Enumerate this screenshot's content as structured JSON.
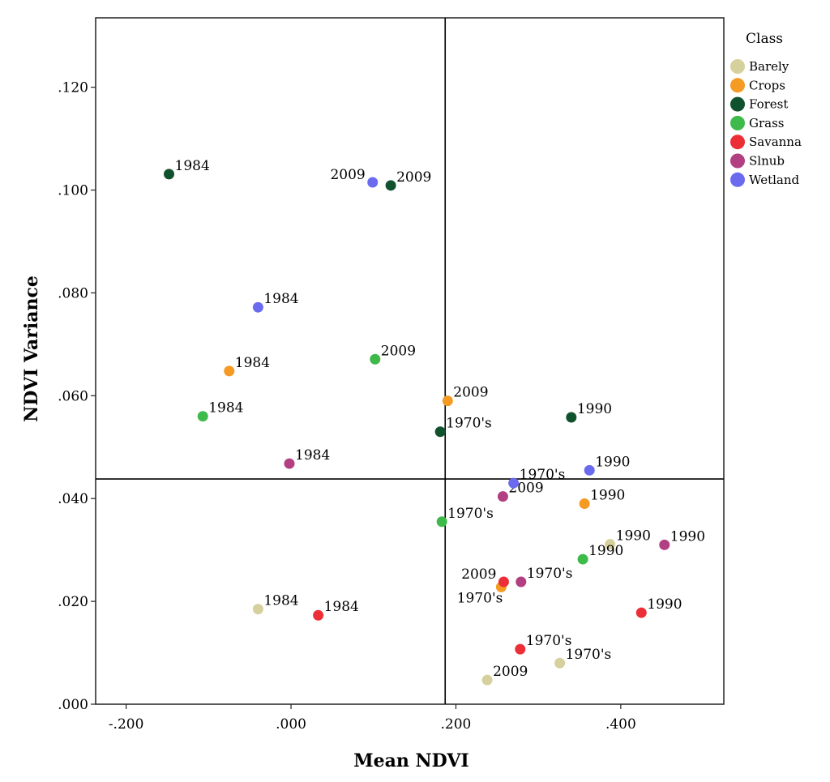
{
  "chart_data": {
    "type": "scatter",
    "title": "",
    "xlabel": "Mean NDVI",
    "ylabel": "NDVI Variance",
    "xlim": [
      -0.237,
      0.525
    ],
    "ylim": [
      0.0,
      0.1335
    ],
    "xticks": [
      -0.2,
      0.0,
      0.2,
      0.4
    ],
    "xtick_labels": [
      "-.200",
      ".000",
      ".200",
      ".400"
    ],
    "yticks": [
      0.0,
      0.02,
      0.04,
      0.06,
      0.08,
      0.1,
      0.12
    ],
    "ytick_labels": [
      ".000",
      ".020",
      ".040",
      ".060",
      ".080",
      ".100",
      ".120"
    ],
    "reference_lines": {
      "x": 0.187,
      "y": 0.0438
    },
    "grid": false,
    "legend": {
      "title": "Class",
      "position": "right",
      "entries": [
        {
          "name": "Barely",
          "color": "#d6d09c"
        },
        {
          "name": "Crops",
          "color": "#f59a22"
        },
        {
          "name": "Forest",
          "color": "#11522e"
        },
        {
          "name": "Grass",
          "color": "#3dba4a"
        },
        {
          "name": "Savanna",
          "color": "#ec2e37"
        },
        {
          "name": "Slnub",
          "color": "#b23f82"
        },
        {
          "name": "Wetland",
          "color": "#6a6aee"
        }
      ]
    },
    "series": [
      {
        "name": "Barely",
        "points": [
          {
            "x": -0.04,
            "y": 0.0185,
            "label": "1984",
            "label_pos": "right"
          },
          {
            "x": 0.238,
            "y": 0.0047,
            "label": "2009",
            "label_pos": "right"
          },
          {
            "x": 0.326,
            "y": 0.008,
            "label": "1970's",
            "label_pos": "right"
          },
          {
            "x": 0.387,
            "y": 0.0311,
            "label": "1990",
            "label_pos": "right"
          }
        ]
      },
      {
        "name": "Crops",
        "points": [
          {
            "x": -0.075,
            "y": 0.0648,
            "label": "1984",
            "label_pos": "right"
          },
          {
            "x": 0.19,
            "y": 0.059,
            "label": "2009",
            "label_pos": "right"
          },
          {
            "x": 0.255,
            "y": 0.0228,
            "label": "1970's",
            "label_pos": "below-left"
          },
          {
            "x": 0.356,
            "y": 0.039,
            "label": "1990",
            "label_pos": "right"
          }
        ]
      },
      {
        "name": "Forest",
        "points": [
          {
            "x": -0.148,
            "y": 0.1031,
            "label": "1984",
            "label_pos": "right"
          },
          {
            "x": 0.121,
            "y": 0.1009,
            "label": "2009",
            "label_pos": "right"
          },
          {
            "x": 0.181,
            "y": 0.053,
            "label": "1970's",
            "label_pos": "right"
          },
          {
            "x": 0.34,
            "y": 0.0558,
            "label": "1990",
            "label_pos": "right"
          }
        ]
      },
      {
        "name": "Grass",
        "points": [
          {
            "x": -0.107,
            "y": 0.056,
            "label": "1984",
            "label_pos": "right"
          },
          {
            "x": 0.102,
            "y": 0.0671,
            "label": "2009",
            "label_pos": "right"
          },
          {
            "x": 0.183,
            "y": 0.0355,
            "label": "1970's",
            "label_pos": "right"
          },
          {
            "x": 0.354,
            "y": 0.0282,
            "label": "1990",
            "label_pos": "right"
          }
        ]
      },
      {
        "name": "Savanna",
        "points": [
          {
            "x": 0.033,
            "y": 0.0173,
            "label": "1984",
            "label_pos": "right"
          },
          {
            "x": 0.258,
            "y": 0.0238,
            "label": "2009",
            "label_pos": "left"
          },
          {
            "x": 0.278,
            "y": 0.0107,
            "label": "1970's",
            "label_pos": "right"
          },
          {
            "x": 0.425,
            "y": 0.0178,
            "label": "1990",
            "label_pos": "right"
          }
        ]
      },
      {
        "name": "Slnub",
        "points": [
          {
            "x": -0.002,
            "y": 0.0468,
            "label": "1984",
            "label_pos": "right"
          },
          {
            "x": 0.257,
            "y": 0.0404,
            "label": "2009",
            "label_pos": "right"
          },
          {
            "x": 0.279,
            "y": 0.0238,
            "label": "1970's",
            "label_pos": "right"
          },
          {
            "x": 0.453,
            "y": 0.031,
            "label": "1990",
            "label_pos": "right"
          }
        ]
      },
      {
        "name": "Wetland",
        "points": [
          {
            "x": -0.04,
            "y": 0.0772,
            "label": "1984",
            "label_pos": "right"
          },
          {
            "x": 0.099,
            "y": 0.1015,
            "label": "2009",
            "label_pos": "left"
          },
          {
            "x": 0.27,
            "y": 0.043,
            "label": "1970's",
            "label_pos": "right"
          },
          {
            "x": 0.362,
            "y": 0.0455,
            "label": "1990",
            "label_pos": "right"
          }
        ]
      }
    ]
  }
}
